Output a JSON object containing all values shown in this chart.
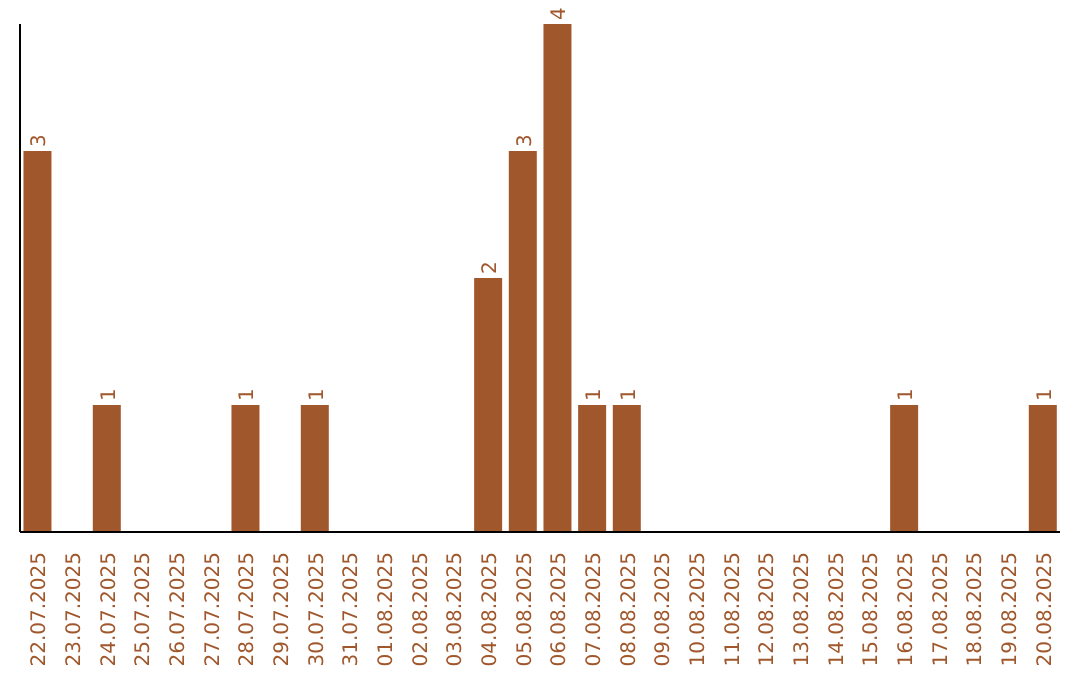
{
  "chart_data": {
    "type": "bar",
    "categories": [
      "22.07.2025",
      "23.07.2025",
      "24.07.2025",
      "25.07.2025",
      "26.07.2025",
      "27.07.2025",
      "28.07.2025",
      "29.07.2025",
      "30.07.2025",
      "31.07.2025",
      "01.08.2025",
      "02.08.2025",
      "03.08.2025",
      "04.08.2025",
      "05.08.2025",
      "06.08.2025",
      "07.08.2025",
      "08.08.2025",
      "09.08.2025",
      "10.08.2025",
      "11.08.2025",
      "12.08.2025",
      "13.08.2025",
      "14.08.2025",
      "15.08.2025",
      "16.08.2025",
      "17.08.2025",
      "18.08.2025",
      "19.08.2025",
      "20.08.2025"
    ],
    "values": [
      3,
      0,
      1,
      0,
      0,
      0,
      1,
      0,
      1,
      0,
      0,
      0,
      0,
      2,
      3,
      4,
      1,
      1,
      0,
      0,
      0,
      0,
      0,
      0,
      0,
      1,
      0,
      0,
      0,
      1
    ],
    "value_labels": [
      "3",
      null,
      "1",
      null,
      null,
      null,
      "1",
      null,
      "1",
      null,
      null,
      null,
      null,
      "2",
      "3",
      "4",
      "1",
      "1",
      null,
      null,
      null,
      null,
      null,
      null,
      null,
      "1",
      null,
      null,
      null,
      "1"
    ],
    "color": "#a0572b",
    "grid": false,
    "legend": false
  }
}
